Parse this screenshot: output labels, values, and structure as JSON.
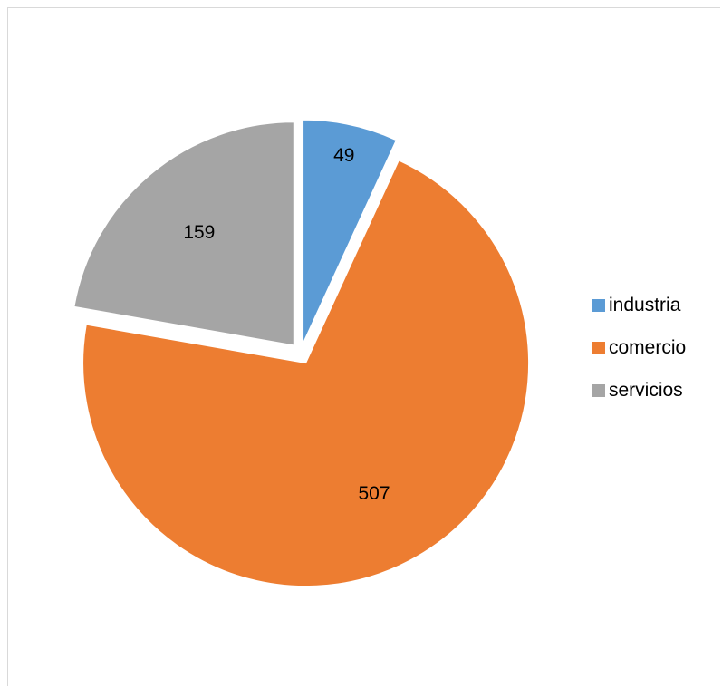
{
  "chart_data": {
    "type": "pie",
    "title": "",
    "categories": [
      "industria",
      "comercio",
      "servicios"
    ],
    "values": [
      49,
      507,
      159
    ],
    "colors": [
      "#5b9bd5",
      "#ed7d31",
      "#a5a5a5"
    ],
    "data_labels": [
      "49",
      "507",
      "159"
    ],
    "exploded": true,
    "start_angle": "12 o'clock, clockwise",
    "legend_position": "right"
  }
}
